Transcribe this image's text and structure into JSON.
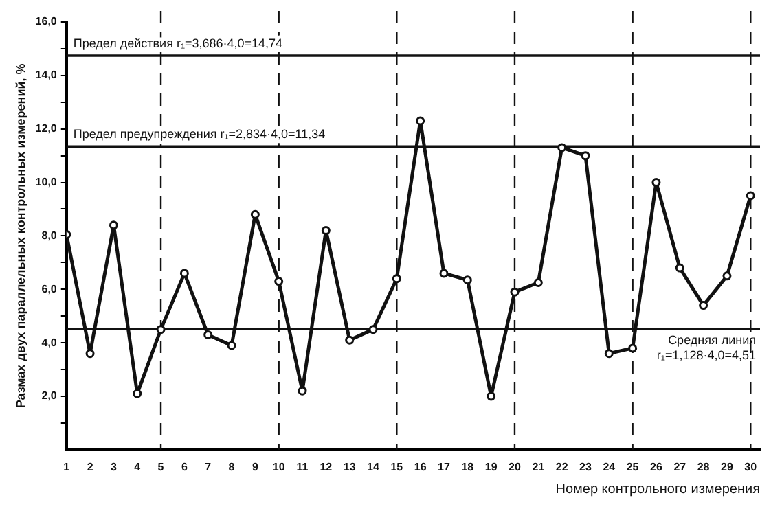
{
  "chart_data": {
    "type": "line",
    "ylabel": "Размах двух параллельных контрольных измерений, %",
    "xlabel": "Номер контрольного измерения",
    "x": [
      1,
      2,
      3,
      4,
      5,
      6,
      7,
      8,
      9,
      10,
      11,
      12,
      13,
      14,
      15,
      16,
      17,
      18,
      19,
      20,
      21,
      22,
      23,
      24,
      25,
      26,
      27,
      28,
      29,
      30
    ],
    "series": [
      {
        "color": "#111111",
        "values": [
          8.05,
          3.6,
          8.4,
          2.1,
          4.5,
          6.6,
          4.3,
          3.9,
          8.8,
          6.3,
          2.2,
          8.2,
          4.1,
          4.5,
          6.4,
          12.3,
          6.6,
          6.35,
          2.0,
          5.9,
          6.25,
          11.3,
          11.0,
          3.6,
          3.8,
          10.0,
          6.8,
          5.4,
          6.5,
          9.5
        ]
      }
    ],
    "xlim": [
      1,
      30.4
    ],
    "xticks": [
      1,
      2,
      3,
      4,
      5,
      6,
      7,
      8,
      9,
      10,
      11,
      12,
      13,
      14,
      15,
      16,
      17,
      18,
      19,
      20,
      21,
      22,
      23,
      24,
      25,
      26,
      27,
      28,
      29,
      30
    ],
    "ylim": [
      0,
      16
    ],
    "yticks": [
      {
        "value": 1,
        "label": null
      },
      {
        "value": 2,
        "label": "2,0"
      },
      {
        "value": 3,
        "label": null
      },
      {
        "value": 4,
        "label": "4,0"
      },
      {
        "value": 5,
        "label": null
      },
      {
        "value": 6,
        "label": "6,0"
      },
      {
        "value": 7,
        "label": null
      },
      {
        "value": 8,
        "label": "8,0"
      },
      {
        "value": 9,
        "label": null
      },
      {
        "value": 10,
        "label": "10,0"
      },
      {
        "value": 11,
        "label": null
      },
      {
        "value": 12,
        "label": "12,0"
      },
      {
        "value": 13,
        "label": null
      },
      {
        "value": 14,
        "label": "14,0"
      },
      {
        "value": 15,
        "label": null
      },
      {
        "value": 16,
        "label": "16,0"
      }
    ],
    "ref_lines": [
      {
        "axis": "y",
        "value": 14.74,
        "label": "Предел действия r₁=3,686·4,0=14,74",
        "line_style": "solid",
        "color": "#111111"
      },
      {
        "axis": "y",
        "value": 11.34,
        "label": "Предел предупреждения r₁=2,834·4,0=11,34",
        "line_style": "solid",
        "color": "#111111"
      },
      {
        "axis": "y",
        "value": 4.51,
        "label": "Средняя линия r₁=1,128·4,0=4,51",
        "line_style": "solid",
        "color": "#111111"
      },
      {
        "axis": "x",
        "value": 5,
        "line_style": "dashed",
        "color": "#111111"
      },
      {
        "axis": "x",
        "value": 10,
        "line_style": "dashed",
        "color": "#111111"
      },
      {
        "axis": "x",
        "value": 15,
        "line_style": "dashed",
        "color": "#111111"
      },
      {
        "axis": "x",
        "value": 20,
        "line_style": "dashed",
        "color": "#111111"
      },
      {
        "axis": "x",
        "value": 25,
        "line_style": "dashed",
        "color": "#111111"
      },
      {
        "axis": "x",
        "value": 30,
        "line_style": "dashed",
        "color": "#111111"
      }
    ],
    "marker": "circle",
    "line_style": "solid",
    "grid": false,
    "legend": false
  }
}
